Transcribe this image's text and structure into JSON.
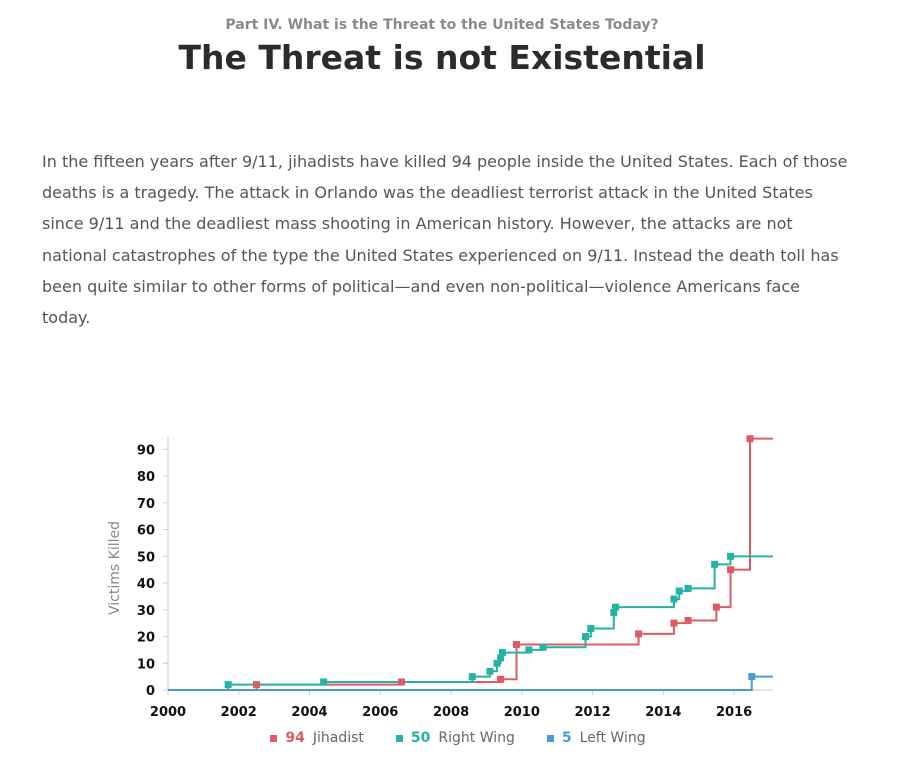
{
  "header": {
    "kicker": "Part IV. What is the Threat to the United States Today?",
    "title": "The Threat is not Existential"
  },
  "intro": "In the fifteen years after 9/11, jihadists have killed 94 people inside the United States. Each of those deaths is a tragedy. The attack in Orlando was the deadliest terrorist attack in the United States since 9/11 and the deadliest mass shooting in American history. However, the attacks are not national catastrophes of the type the United States experienced on 9/11. Instead the death toll has been quite similar to other forms of political—and even non-political—violence Americans face today.",
  "chart_data": {
    "type": "line",
    "step": true,
    "ylabel": "Victims Killed",
    "xlabel": "",
    "xlim": [
      2000,
      2017.1
    ],
    "ylim": [
      0,
      95
    ],
    "xticks": [
      "2000",
      "2002",
      "2004",
      "2006",
      "2008",
      "2010",
      "2012",
      "2014",
      "2016"
    ],
    "yticks": [
      "0",
      "10",
      "20",
      "30",
      "40",
      "50",
      "60",
      "70",
      "80",
      "90"
    ],
    "legend_position": "bottom",
    "series": [
      {
        "name": "Jihadist",
        "total": "94",
        "color": "#e05a65",
        "points": [
          [
            2002.5,
            2
          ],
          [
            2006.6,
            3
          ],
          [
            2009.4,
            4
          ],
          [
            2009.85,
            17
          ],
          [
            2013.3,
            21
          ],
          [
            2014.3,
            25
          ],
          [
            2014.7,
            26
          ],
          [
            2015.5,
            31
          ],
          [
            2015.9,
            45
          ],
          [
            2016.45,
            94
          ]
        ]
      },
      {
        "name": "Right Wing",
        "total": "50",
        "color": "#25b3a5",
        "points": [
          [
            2001.7,
            2
          ],
          [
            2004.4,
            3
          ],
          [
            2008.6,
            5
          ],
          [
            2009.1,
            7
          ],
          [
            2009.3,
            10
          ],
          [
            2009.4,
            12
          ],
          [
            2009.45,
            14
          ],
          [
            2010.2,
            15
          ],
          [
            2010.6,
            16
          ],
          [
            2011.8,
            20
          ],
          [
            2011.95,
            23
          ],
          [
            2012.6,
            29
          ],
          [
            2012.65,
            31
          ],
          [
            2014.3,
            34
          ],
          [
            2014.45,
            37
          ],
          [
            2014.7,
            38
          ],
          [
            2015.45,
            47
          ],
          [
            2015.9,
            50
          ]
        ]
      },
      {
        "name": "Left Wing",
        "total": "5",
        "color": "#4c9bd0",
        "points": [
          [
            2016.5,
            5
          ]
        ]
      }
    ]
  }
}
